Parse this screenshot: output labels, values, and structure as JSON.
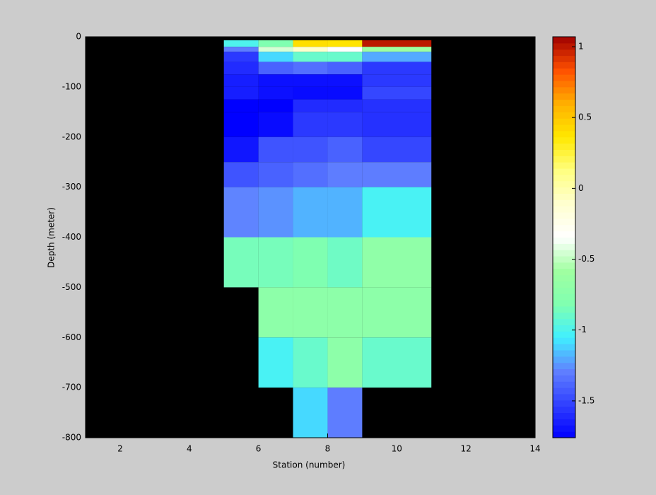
{
  "chart_data": {
    "type": "heatmap",
    "x_label": "Station (number)",
    "y_label": "Depth (meter)",
    "xlim": [
      1,
      14
    ],
    "ylim": [
      -800,
      0
    ],
    "xticks": [
      2,
      4,
      6,
      8,
      10,
      12,
      14
    ],
    "yticks": [
      -800,
      -700,
      -600,
      -500,
      -400,
      -300,
      -200,
      -100,
      0
    ],
    "x_edges": [
      5,
      6,
      7,
      8,
      9,
      11
    ],
    "y_edges": [
      -7,
      -20,
      -30,
      -50,
      -75,
      -100,
      -125,
      -150,
      -200,
      -250,
      -300,
      -400,
      -500,
      -600,
      -700,
      -800
    ],
    "values": [
      [
        -1.0,
        -0.82,
        0.4,
        0.38,
        1.0
      ],
      [
        -1.3,
        -0.45,
        -0.1,
        -0.34,
        -0.6
      ],
      [
        -1.55,
        -1.1,
        -0.9,
        -0.9,
        -1.2
      ],
      [
        -1.6,
        -1.4,
        -1.35,
        -1.4,
        -1.55
      ],
      [
        -1.65,
        -1.7,
        -1.7,
        -1.7,
        -1.55
      ],
      [
        -1.65,
        -1.7,
        -1.72,
        -1.72,
        -1.5
      ],
      [
        -1.76,
        -1.76,
        -1.6,
        -1.6,
        -1.58
      ],
      [
        -1.76,
        -1.72,
        -1.55,
        -1.55,
        -1.58
      ],
      [
        -1.68,
        -1.45,
        -1.45,
        -1.4,
        -1.5
      ],
      [
        -1.45,
        -1.4,
        -1.35,
        -1.3,
        -1.3
      ],
      [
        -1.28,
        -1.25,
        -1.18,
        -1.18,
        -1.02
      ],
      [
        -0.85,
        -0.85,
        -0.82,
        -0.88,
        -0.7
      ],
      [
        null,
        -0.72,
        -0.72,
        -0.72,
        -0.72
      ],
      [
        null,
        -1.02,
        -0.9,
        -0.72,
        -0.9
      ],
      [
        null,
        null,
        -1.1,
        -1.3,
        null
      ]
    ],
    "clim": [
      -1.76,
      1.07
    ],
    "cticks": [
      -1.5,
      -1,
      -0.5,
      0,
      0.5,
      1
    ],
    "colormap": [
      "#0000ff",
      "#3040ff",
      "#6080ff",
      "#40f0ff",
      "#80ffb0",
      "#a0ffa0",
      "#ffffff",
      "#ffffd0",
      "#ffff80",
      "#ffe800",
      "#ffb000",
      "#ff5000",
      "#a00000"
    ],
    "background": "#000000"
  }
}
